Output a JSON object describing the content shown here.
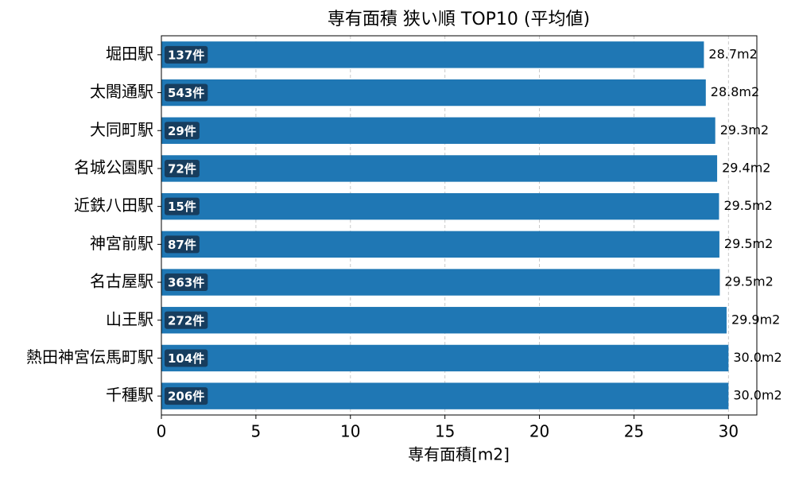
{
  "chart_data": {
    "type": "barh",
    "title": "専有面積 狭い順 TOP10 (平均値)",
    "x_label": "専有面積[m2]",
    "categories": [
      "堀田駅",
      "太閤通駅",
      "大同町駅",
      "名城公園駅",
      "近鉄八田駅",
      "神宮前駅",
      "名古屋駅",
      "山王駅",
      "熱田神宮伝馬町駅",
      "千種駅"
    ],
    "values": [
      28.7,
      28.8,
      29.3,
      29.4,
      29.5,
      29.52,
      29.54,
      29.9,
      30.0,
      30.0
    ],
    "value_labels": [
      "28.7m2",
      "28.8m2",
      "29.3m2",
      "29.4m2",
      "29.5m2",
      "29.5m2",
      "29.5m2",
      "29.9m2",
      "30.0m2",
      "30.0m2"
    ],
    "count_labels": [
      "137件",
      "543件",
      "29件",
      "72件",
      "15件",
      "87件",
      "363件",
      "272件",
      "104件",
      "206件"
    ],
    "color": "#1f77b4",
    "badge_color": "#173d5e",
    "xlim": [
      0,
      31.5
    ],
    "xticks": [
      0,
      5,
      10,
      15,
      20,
      25,
      30
    ],
    "grid": true
  }
}
